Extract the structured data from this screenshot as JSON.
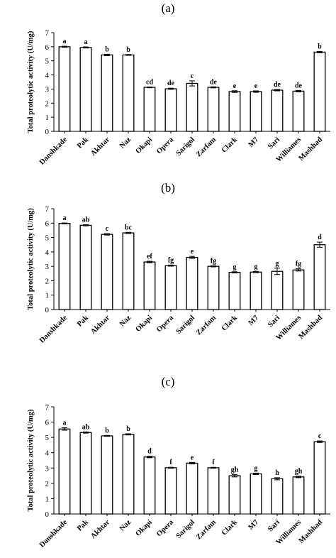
{
  "panels": [
    {
      "label": "(a)"
    },
    {
      "label": "(b)"
    },
    {
      "label": "(c)"
    }
  ],
  "chart_data": [
    {
      "type": "bar",
      "title": "(a)",
      "ylabel": "Total proteolytic activity (U/mg)",
      "xlabel": "",
      "ylim": [
        0,
        7
      ],
      "yticks": [
        0,
        1,
        2,
        3,
        4,
        5,
        6,
        7
      ],
      "grid": false,
      "categories": [
        "Danshkade",
        "Pak",
        "Akhtar",
        "Naz",
        "Okapi",
        "Opera",
        "Sarigol",
        "Zarfam",
        "Clark",
        "M7",
        "Sari",
        "Williames",
        "Mashhad"
      ],
      "values": [
        6.0,
        5.95,
        5.42,
        5.42,
        3.12,
        3.02,
        3.4,
        3.12,
        2.82,
        2.82,
        2.92,
        2.85,
        5.62
      ],
      "errors": [
        0.04,
        0.04,
        0.05,
        0.03,
        0.03,
        0.04,
        0.18,
        0.04,
        0.06,
        0.05,
        0.05,
        0.05,
        0.05
      ],
      "data_labels": [
        "a",
        "a",
        "b",
        "b",
        "cd",
        "de",
        "c",
        "de",
        "e",
        "e",
        "de",
        "de",
        "b"
      ]
    },
    {
      "type": "bar",
      "title": "(b)",
      "ylabel": "Total proteolytic activity (U/mg)",
      "xlabel": "",
      "ylim": [
        0,
        7
      ],
      "yticks": [
        0,
        1,
        2,
        3,
        4,
        5,
        6,
        7
      ],
      "grid": false,
      "categories": [
        "Danshkade",
        "Pak",
        "Akhtar",
        "Naz",
        "Okapi",
        "Opera",
        "Sarigol",
        "Zarfam",
        "Clark",
        "M7",
        "Sari",
        "Williames",
        "Mashhad"
      ],
      "values": [
        5.98,
        5.85,
        5.22,
        5.32,
        3.3,
        3.05,
        3.62,
        3.0,
        2.58,
        2.6,
        2.65,
        2.75,
        4.5
      ],
      "errors": [
        0.03,
        0.04,
        0.05,
        0.04,
        0.05,
        0.04,
        0.07,
        0.04,
        0.04,
        0.04,
        0.22,
        0.08,
        0.18
      ],
      "data_labels": [
        "a",
        "ab",
        "c",
        "bc",
        "ef",
        "fg",
        "e",
        "fg",
        "g",
        "g",
        "g",
        "fg",
        "d"
      ]
    },
    {
      "type": "bar",
      "title": "(c)",
      "ylabel": "Total proteolytic activity (U/mg)",
      "xlabel": "",
      "ylim": [
        0,
        7
      ],
      "yticks": [
        0,
        1,
        2,
        3,
        4,
        5,
        6,
        7
      ],
      "grid": false,
      "categories": [
        "Danshkade",
        "Pak",
        "Akhtar",
        "Naz",
        "Okapi",
        "Opera",
        "Sarigol",
        "Zarfam",
        "Clark",
        "M7",
        "Sari",
        "Williames",
        "Mashhad"
      ],
      "values": [
        5.55,
        5.32,
        5.1,
        5.2,
        3.72,
        3.02,
        3.32,
        3.02,
        2.5,
        2.62,
        2.3,
        2.42,
        4.72
      ],
      "errors": [
        0.08,
        0.04,
        0.03,
        0.04,
        0.05,
        0.03,
        0.05,
        0.03,
        0.08,
        0.05,
        0.07,
        0.05,
        0.05
      ],
      "data_labels": [
        "a",
        "ab",
        "b",
        "b",
        "d",
        "f",
        "e",
        "f",
        "gh",
        "g",
        "h",
        "gh",
        "c"
      ]
    }
  ]
}
